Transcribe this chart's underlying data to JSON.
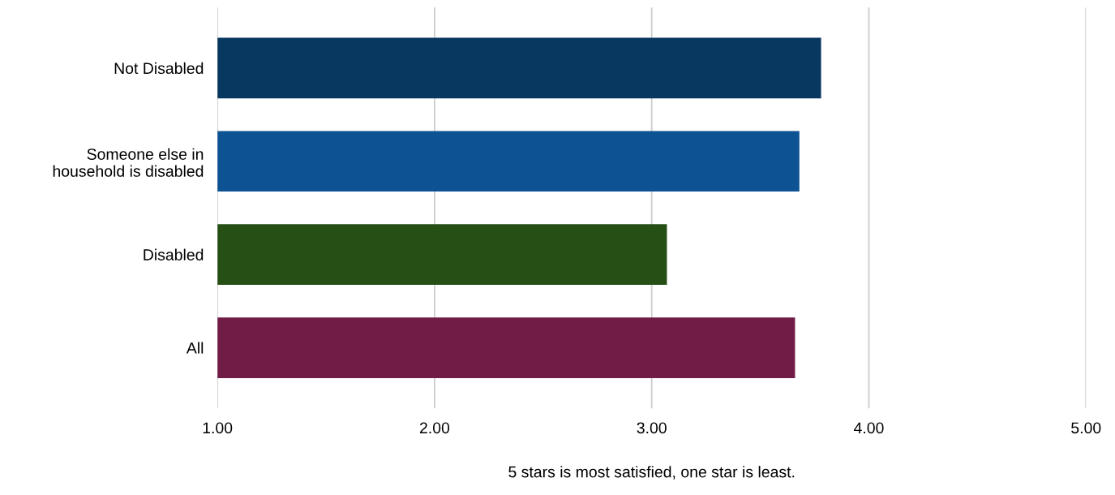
{
  "chart_data": {
    "type": "bar",
    "orientation": "horizontal",
    "categories": [
      "Not Disabled",
      "Someone else in\nhousehold is disabled",
      "Disabled",
      "All"
    ],
    "values": [
      3.78,
      3.68,
      3.07,
      3.66
    ],
    "colors": [
      "#08375f",
      "#0d5394",
      "#264f16",
      "#701c47"
    ],
    "xlabel": "5 stars is most satisfied, one star is least.",
    "xlim": [
      1,
      5
    ],
    "xticks": [
      {
        "value": 1,
        "label": "1.00"
      },
      {
        "value": 2,
        "label": "2.00"
      },
      {
        "value": 3,
        "label": "3.00"
      },
      {
        "value": 4,
        "label": "4.00"
      },
      {
        "value": 5,
        "label": "5.00"
      }
    ],
    "grid": "x"
  }
}
